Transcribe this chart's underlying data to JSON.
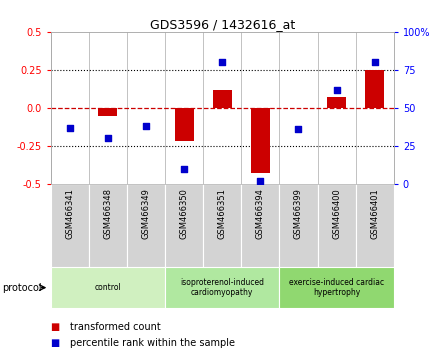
{
  "title": "GDS3596 / 1432616_at",
  "samples": [
    "GSM466341",
    "GSM466348",
    "GSM466349",
    "GSM466350",
    "GSM466351",
    "GSM466394",
    "GSM466399",
    "GSM466400",
    "GSM466401"
  ],
  "transformed_count": [
    0.0,
    -0.05,
    0.0,
    -0.22,
    0.12,
    -0.43,
    0.0,
    0.07,
    0.25
  ],
  "percentile_rank": [
    37,
    30,
    38,
    10,
    80,
    2,
    36,
    62,
    80
  ],
  "groups": [
    {
      "label": "control",
      "start": 0,
      "end": 3,
      "color": "#d0f0c0"
    },
    {
      "label": "isoproterenol-induced\ncardiomyopathy",
      "start": 3,
      "end": 6,
      "color": "#b0e8a0"
    },
    {
      "label": "exercise-induced cardiac\nhypertrophy",
      "start": 6,
      "end": 9,
      "color": "#90d870"
    }
  ],
  "bar_color": "#cc0000",
  "dot_color": "#0000cc",
  "dashed_line_color": "#cc0000",
  "ylim_left": [
    -0.5,
    0.5
  ],
  "ylim_right": [
    0,
    100
  ],
  "yticks_left": [
    -0.5,
    -0.25,
    0.0,
    0.25,
    0.5
  ],
  "yticks_right": [
    0,
    25,
    50,
    75,
    100
  ],
  "hlines": [
    0.25,
    -0.25
  ],
  "plot_bg": "#ffffff",
  "sample_bg": "#d3d3d3",
  "protocol_label": "protocol",
  "legend_items": [
    {
      "label": "transformed count",
      "color": "#cc0000"
    },
    {
      "label": "percentile rank within the sample",
      "color": "#0000cc"
    }
  ]
}
